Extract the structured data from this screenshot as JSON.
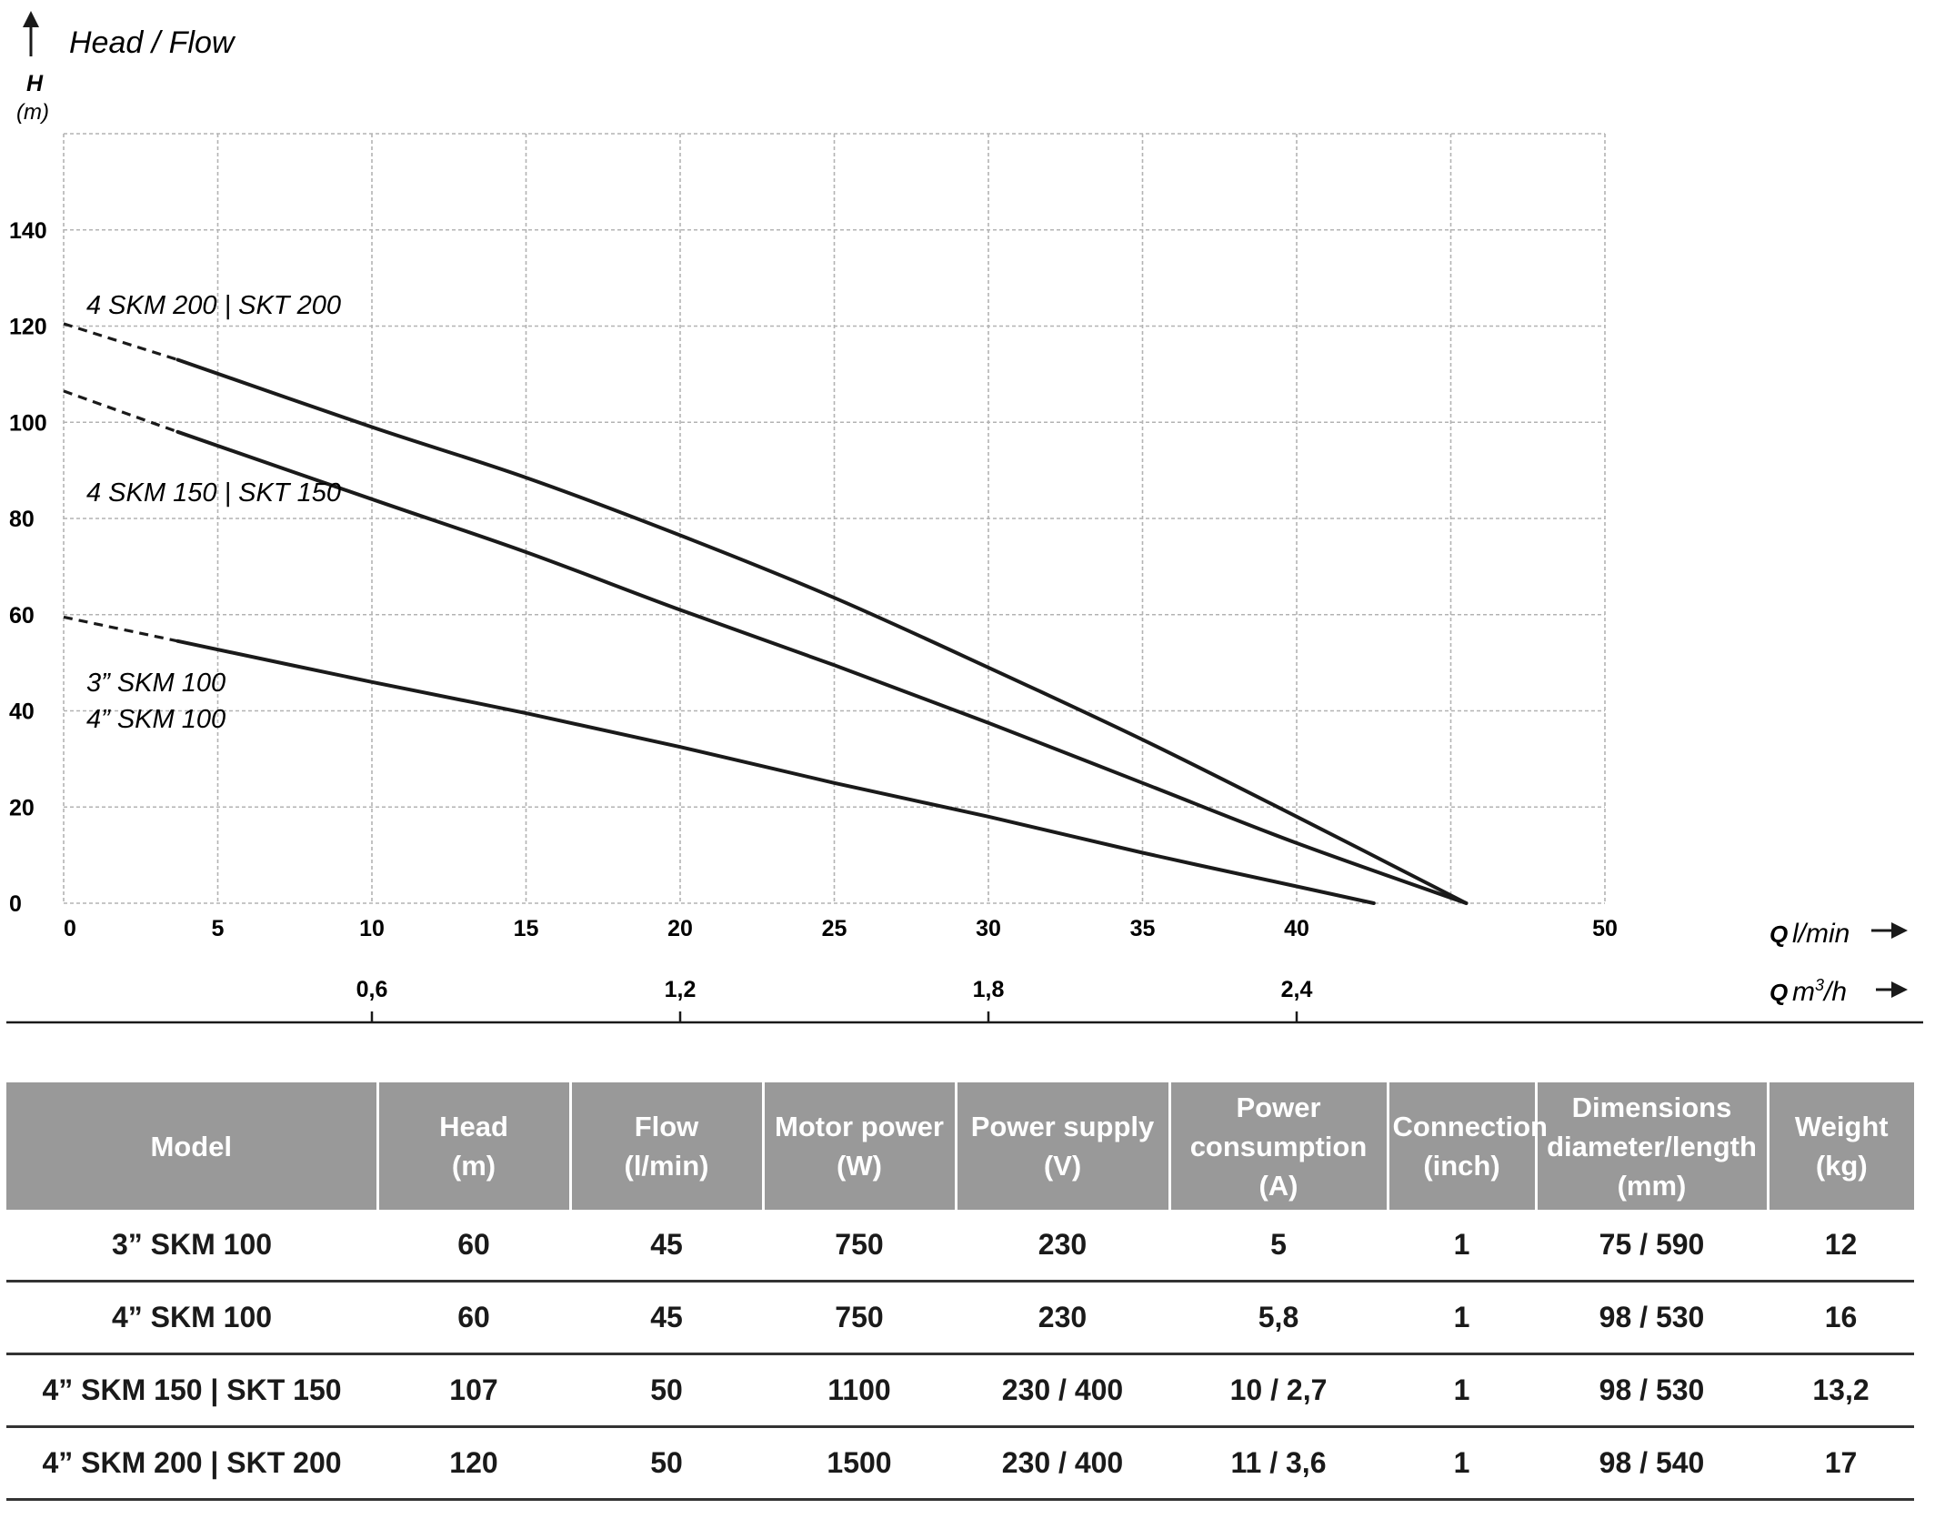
{
  "chart_data": {
    "type": "line",
    "y_title": "Head / Flow",
    "y_symbol": "H",
    "y_unit": "(m)",
    "x_label_q": "Q",
    "x_unit_lmin": "l/min",
    "x2_unit_base": "m",
    "x2_unit_sup": "3",
    "x2_unit_tail": "/h",
    "x_ticks": [
      0,
      5,
      10,
      15,
      20,
      25,
      30,
      35,
      40,
      50
    ],
    "x_tick_labels": [
      "0",
      "5",
      "10",
      "15",
      "20",
      "25",
      "30",
      "35",
      "40",
      "50"
    ],
    "x_grid": [
      0,
      5,
      10,
      15,
      20,
      25,
      30,
      35,
      40,
      45,
      50
    ],
    "x2_ticks": [
      10,
      20,
      30,
      40
    ],
    "x2_tick_labels": [
      "0,6",
      "1,2",
      "1,8",
      "2,4"
    ],
    "y_ticks": [
      0,
      20,
      40,
      60,
      80,
      100,
      120,
      140
    ],
    "y_grid": [
      0,
      20,
      40,
      60,
      80,
      100,
      120,
      140,
      160
    ],
    "xlim": [
      0,
      50
    ],
    "ylim": [
      0,
      160
    ],
    "grid": true,
    "series": [
      {
        "name": "4 SKM 200 | SKT 200",
        "dashed_until": 3.7,
        "points": [
          [
            0,
            120.5
          ],
          [
            3.7,
            113
          ],
          [
            10,
            99
          ],
          [
            15,
            88.5
          ],
          [
            20,
            76.5
          ],
          [
            25,
            63.5
          ],
          [
            30,
            49
          ],
          [
            35,
            34
          ],
          [
            40,
            18
          ],
          [
            45.5,
            0
          ]
        ]
      },
      {
        "name": "4 SKM 150 | SKT 150",
        "dashed_until": 3.7,
        "points": [
          [
            0,
            106.5
          ],
          [
            3.7,
            98
          ],
          [
            10,
            84
          ],
          [
            15,
            73
          ],
          [
            20,
            61
          ],
          [
            25,
            49.5
          ],
          [
            30,
            37.5
          ],
          [
            35,
            25
          ],
          [
            40,
            12.5
          ],
          [
            45.5,
            0
          ]
        ]
      },
      {
        "name": "3” SKM 100 / 4” SKM 100",
        "dashed_until": 3.7,
        "points": [
          [
            0,
            59.5
          ],
          [
            3.7,
            54.5
          ],
          [
            10,
            46
          ],
          [
            15,
            39.5
          ],
          [
            20,
            32.5
          ],
          [
            25,
            25
          ],
          [
            30,
            18
          ],
          [
            35,
            10.5
          ],
          [
            40,
            3.5
          ],
          [
            42.5,
            0
          ]
        ]
      }
    ],
    "labels": [
      {
        "lines": [
          "4 SKM 200 | SKT 200"
        ]
      },
      {
        "lines": [
          "4 SKM 150 | SKT 150"
        ]
      },
      {
        "lines": [
          "3” SKM 100",
          "4” SKM 100"
        ]
      }
    ]
  },
  "table": {
    "headers": [
      "Model",
      "Head\n(m)",
      "Flow\n(l/min)",
      "Motor power\n(W)",
      "Power supply\n(V)",
      "Power\nconsumption\n(A)",
      "Connection\n(inch)",
      "Dimensions\ndiameter/length\n(mm)",
      "Weight\n(kg)"
    ],
    "rows": [
      [
        "3” SKM 100",
        "60",
        "45",
        "750",
        "230",
        "5",
        "1",
        "75 / 590",
        "12"
      ],
      [
        "4” SKM 100",
        "60",
        "45",
        "750",
        "230",
        "5,8",
        "1",
        "98 / 530",
        "16"
      ],
      [
        "4” SKM 150 | SKT 150",
        "107",
        "50",
        "1100",
        "230 / 400",
        "10 / 2,7",
        "1",
        "98 / 530",
        "13,2"
      ],
      [
        "4” SKM 200 | SKT 200",
        "120",
        "50",
        "1500",
        "230 / 400",
        "11 / 3,6",
        "1",
        "98 / 540",
        "17"
      ]
    ]
  }
}
